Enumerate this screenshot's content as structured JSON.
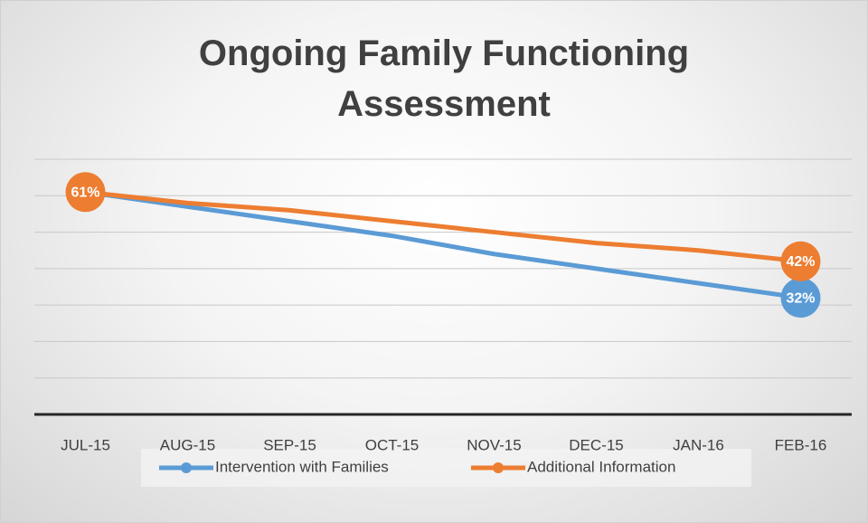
{
  "chart_data": {
    "type": "line",
    "title": "Ongoing Family Functioning Assessment",
    "categories": [
      "JUL-15",
      "AUG-15",
      "SEP-15",
      "OCT-15",
      "NOV-15",
      "DEC-15",
      "JAN-16",
      "FEB-16"
    ],
    "series": [
      {
        "name": "Intervention with Families",
        "color": "#5b9bd5",
        "values": [
          61,
          57,
          53,
          49,
          44,
          40,
          36,
          32
        ],
        "value_labels": [
          null,
          null,
          null,
          null,
          null,
          null,
          null,
          "32%"
        ]
      },
      {
        "name": "Additional Information",
        "color": "#ed7d31",
        "values": [
          61,
          58,
          56,
          53,
          50,
          47,
          45,
          42
        ],
        "value_labels": [
          "61%",
          null,
          null,
          null,
          null,
          null,
          null,
          "42%"
        ]
      }
    ],
    "ylim": [
      0,
      70
    ],
    "yticks": [
      0,
      10,
      20,
      30,
      40,
      50,
      60,
      70
    ],
    "grid": true,
    "legend": "bottom"
  }
}
